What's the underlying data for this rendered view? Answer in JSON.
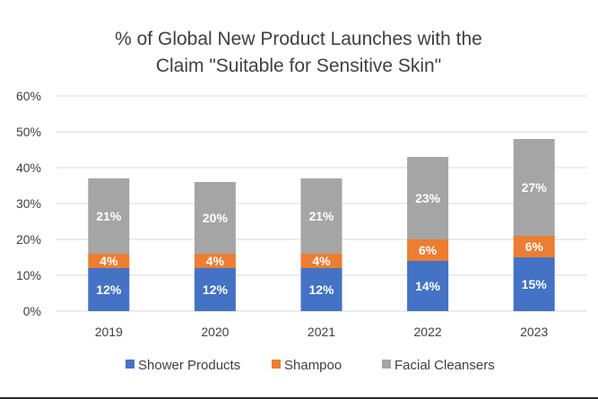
{
  "chart_data": {
    "type": "bar",
    "stacked": true,
    "title": "% of Global New Product Launches with the Claim \"Suitable for Sensitive Skin\"",
    "title_lines": [
      "% of Global New Product Launches with the",
      "Claim \"Suitable for Sensitive Skin\""
    ],
    "categories": [
      "2019",
      "2020",
      "2021",
      "2022",
      "2023"
    ],
    "series": [
      {
        "name": "Shower Products",
        "color": "#4472c4",
        "values": [
          12,
          12,
          12,
          14,
          15
        ],
        "labels": [
          "12%",
          "12%",
          "12%",
          "14%",
          "15%"
        ]
      },
      {
        "name": "Shampoo",
        "color": "#ed7d31",
        "values": [
          4,
          4,
          4,
          6,
          6
        ],
        "labels": [
          "4%",
          "4%",
          "4%",
          "6%",
          "6%"
        ]
      },
      {
        "name": "Facial Cleansers",
        "color": "#a5a5a5",
        "values": [
          21,
          20,
          21,
          23,
          27
        ],
        "labels": [
          "21%",
          "20%",
          "21%",
          "23%",
          "27%"
        ]
      }
    ],
    "ylim": [
      0,
      60
    ],
    "yticks": [
      0,
      10,
      20,
      30,
      40,
      50,
      60
    ],
    "ytick_labels": [
      "0%",
      "10%",
      "20%",
      "30%",
      "40%",
      "50%",
      "60%"
    ],
    "grid": true,
    "legend_position": "bottom"
  }
}
